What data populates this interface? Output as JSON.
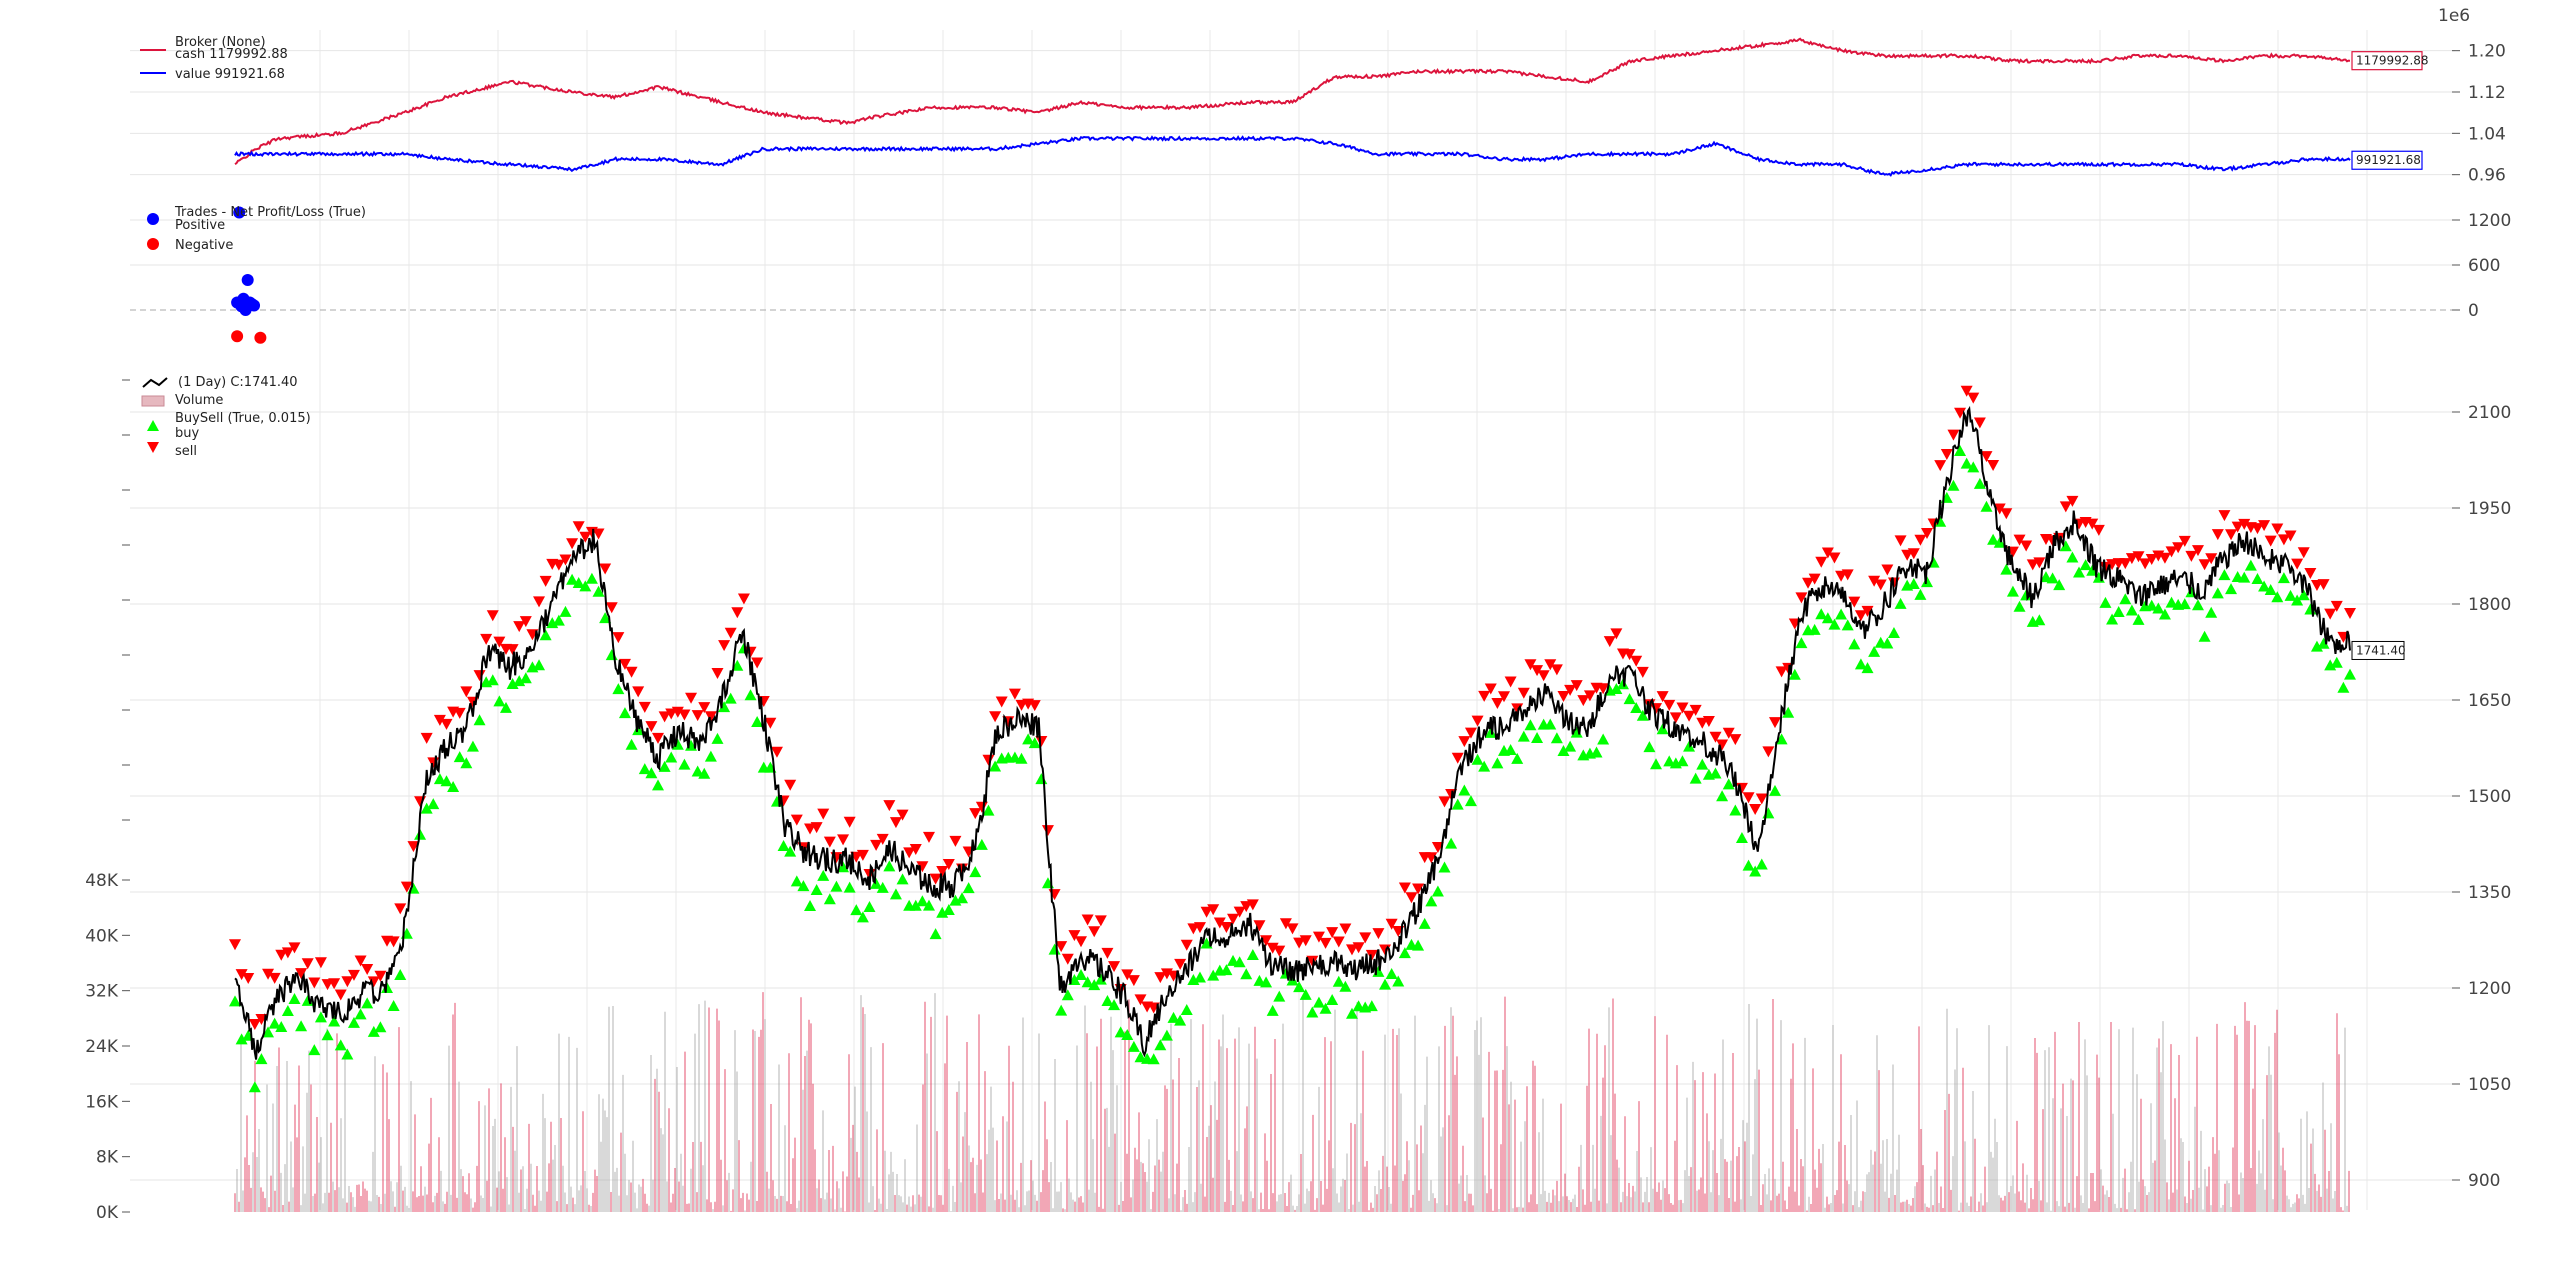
{
  "chart_data": [
    {
      "id": "broker",
      "type": "line",
      "scale_label": "1e6",
      "legend": {
        "title": "Broker (None)",
        "entries": [
          {
            "label": "cash 1179992.88",
            "color": "#dc143c"
          },
          {
            "label": "value 991921.68",
            "color": "#0000ff"
          }
        ]
      },
      "yticks": [
        "1.20",
        "1.12",
        "1.04",
        "0.96"
      ],
      "ytick_values": [
        1.2,
        1.12,
        1.04,
        0.96
      ],
      "ylim": [
        0.94,
        1.24
      ],
      "series": [
        {
          "name": "cash",
          "color": "#dc143c",
          "last_value_tag": "1179992.88",
          "x": [
            0,
            0.01,
            0.02,
            0.05,
            0.08,
            0.1,
            0.13,
            0.16,
            0.18,
            0.2,
            0.23,
            0.25,
            0.27,
            0.29,
            0.3,
            0.33,
            0.36,
            0.38,
            0.4,
            0.42,
            0.45,
            0.48,
            0.5,
            0.52,
            0.54,
            0.56,
            0.58,
            0.6,
            0.62,
            0.64,
            0.66,
            0.68,
            0.7,
            0.72,
            0.74,
            0.76,
            0.78,
            0.8,
            0.82,
            0.84,
            0.86,
            0.88,
            0.9,
            0.92,
            0.94,
            0.96,
            0.98,
            1.0
          ],
          "values": [
            0.98,
            1.01,
            1.03,
            1.04,
            1.08,
            1.11,
            1.14,
            1.12,
            1.11,
            1.13,
            1.1,
            1.08,
            1.07,
            1.06,
            1.07,
            1.09,
            1.09,
            1.08,
            1.1,
            1.09,
            1.09,
            1.1,
            1.1,
            1.15,
            1.15,
            1.16,
            1.16,
            1.16,
            1.15,
            1.14,
            1.18,
            1.19,
            1.2,
            1.21,
            1.22,
            1.2,
            1.19,
            1.19,
            1.19,
            1.18,
            1.18,
            1.18,
            1.19,
            1.19,
            1.18,
            1.19,
            1.19,
            1.18
          ]
        },
        {
          "name": "value",
          "color": "#0000ff",
          "last_value_tag": "991921.68",
          "x": [
            0,
            0.02,
            0.05,
            0.08,
            0.1,
            0.13,
            0.16,
            0.18,
            0.2,
            0.23,
            0.25,
            0.27,
            0.29,
            0.3,
            0.33,
            0.36,
            0.38,
            0.4,
            0.42,
            0.45,
            0.48,
            0.5,
            0.52,
            0.54,
            0.56,
            0.58,
            0.6,
            0.62,
            0.64,
            0.66,
            0.68,
            0.7,
            0.72,
            0.74,
            0.76,
            0.78,
            0.8,
            0.82,
            0.84,
            0.86,
            0.88,
            0.9,
            0.92,
            0.94,
            0.96,
            0.98,
            1.0
          ],
          "values": [
            1.0,
            1.0,
            1.0,
            1.0,
            0.99,
            0.98,
            0.97,
            0.99,
            0.99,
            0.98,
            1.01,
            1.01,
            1.01,
            1.01,
            1.01,
            1.01,
            1.02,
            1.03,
            1.03,
            1.03,
            1.03,
            1.03,
            1.02,
            1.0,
            1.0,
            1.0,
            0.99,
            0.99,
            1.0,
            1.0,
            1.0,
            1.02,
            0.99,
            0.98,
            0.98,
            0.96,
            0.97,
            0.98,
            0.98,
            0.98,
            0.98,
            0.98,
            0.98,
            0.97,
            0.98,
            0.99,
            0.99
          ]
        }
      ]
    },
    {
      "id": "trades",
      "type": "scatter",
      "legend": {
        "title": "Trades - Net Profit/Loss (True)",
        "entries": [
          {
            "label": "Positive",
            "color": "#0000ff"
          },
          {
            "label": "Negative",
            "color": "#ff0000"
          }
        ]
      },
      "yticks": [
        "1200",
        "600",
        "0"
      ],
      "ytick_values": [
        1200,
        600,
        0
      ],
      "ylim": [
        -600,
        1400
      ],
      "zero_line": true,
      "series": [
        {
          "name": "Positive",
          "color": "#0000ff",
          "x": [
            0.002,
            0.006,
            0.001,
            0.004,
            0.007,
            0.003,
            0.008,
            0.005,
            0.009
          ],
          "values": [
            1300,
            400,
            100,
            150,
            100,
            50,
            80,
            0,
            60
          ]
        },
        {
          "name": "Negative",
          "color": "#ff0000",
          "x": [
            0.001,
            0.012
          ],
          "values": [
            -350,
            -370
          ]
        }
      ]
    },
    {
      "id": "price",
      "type": "line",
      "legend": {
        "entries": [
          {
            "label": "(1 Day) C:1741.40",
            "color": "#000000"
          },
          {
            "label": "Volume",
            "color": "#e6b8bf"
          },
          {
            "label": "BuySell (True, 0.015)",
            "color": "#222222"
          },
          {
            "label": "buy",
            "color": "#00ff00"
          },
          {
            "label": "sell",
            "color": "#ff0000"
          }
        ]
      },
      "yticks_right": [
        "2100",
        "1950",
        "1800",
        "1650",
        "1500",
        "1350",
        "1200",
        "1050",
        "900"
      ],
      "ytick_values_right": [
        2100,
        1950,
        1800,
        1650,
        1500,
        1350,
        1200,
        1050,
        900
      ],
      "ylim_right": [
        850,
        2150
      ],
      "yticks_left": [
        "48K",
        "40K",
        "32K",
        "24K",
        "16K",
        "8K",
        "0K"
      ],
      "ytick_values_left": [
        48000,
        40000,
        32000,
        24000,
        16000,
        8000,
        0
      ],
      "ylim_left": [
        0,
        48000
      ],
      "last_value_tag": "1741.40",
      "series": [
        {
          "name": "close",
          "color": "#000000",
          "x": [
            0,
            0.005,
            0.01,
            0.015,
            0.02,
            0.03,
            0.04,
            0.05,
            0.06,
            0.07,
            0.08,
            0.09,
            0.1,
            0.11,
            0.12,
            0.13,
            0.14,
            0.15,
            0.16,
            0.17,
            0.18,
            0.19,
            0.2,
            0.21,
            0.22,
            0.23,
            0.24,
            0.25,
            0.26,
            0.27,
            0.28,
            0.29,
            0.3,
            0.31,
            0.32,
            0.33,
            0.34,
            0.35,
            0.36,
            0.37,
            0.38,
            0.39,
            0.4,
            0.41,
            0.42,
            0.43,
            0.44,
            0.45,
            0.46,
            0.47,
            0.48,
            0.49,
            0.5,
            0.51,
            0.52,
            0.53,
            0.54,
            0.55,
            0.56,
            0.57,
            0.58,
            0.59,
            0.6,
            0.61,
            0.62,
            0.63,
            0.64,
            0.65,
            0.66,
            0.67,
            0.68,
            0.69,
            0.7,
            0.71,
            0.72,
            0.73,
            0.74,
            0.75,
            0.76,
            0.77,
            0.78,
            0.79,
            0.8,
            0.81,
            0.82,
            0.83,
            0.84,
            0.85,
            0.86,
            0.87,
            0.88,
            0.89,
            0.9,
            0.91,
            0.92,
            0.93,
            0.94,
            0.95,
            0.96,
            0.97,
            0.98,
            0.99,
            1.0
          ],
          "values": [
            1200,
            1160,
            1100,
            1150,
            1190,
            1210,
            1170,
            1160,
            1190,
            1200,
            1290,
            1520,
            1580,
            1610,
            1730,
            1700,
            1730,
            1800,
            1870,
            1900,
            1710,
            1620,
            1560,
            1600,
            1580,
            1650,
            1760,
            1620,
            1450,
            1410,
            1400,
            1400,
            1370,
            1420,
            1380,
            1360,
            1360,
            1420,
            1600,
            1620,
            1610,
            1200,
            1250,
            1230,
            1190,
            1110,
            1190,
            1230,
            1280,
            1280,
            1300,
            1240,
            1220,
            1240,
            1240,
            1230,
            1240,
            1270,
            1330,
            1410,
            1550,
            1600,
            1610,
            1640,
            1660,
            1620,
            1600,
            1690,
            1690,
            1630,
            1610,
            1590,
            1570,
            1520,
            1410,
            1600,
            1780,
            1830,
            1810,
            1760,
            1800,
            1860,
            1850,
            2000,
            2110,
            1960,
            1860,
            1810,
            1890,
            1930,
            1860,
            1840,
            1810,
            1830,
            1840,
            1820,
            1870,
            1900,
            1870,
            1860,
            1820,
            1740,
            1741.4
          ]
        }
      ],
      "volume_approx_max": 32000
    }
  ]
}
